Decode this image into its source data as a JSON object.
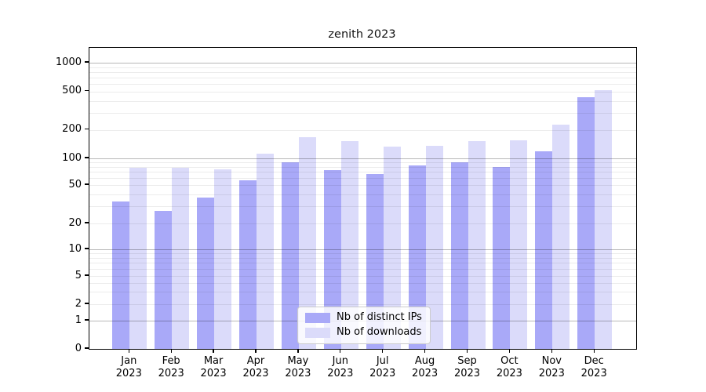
{
  "title": "zenith 2023",
  "colors": {
    "bar_distinct_ips": "#a9a9f8",
    "bar_downloads": "#dbdbfa",
    "grid_major": "#bcbcbc",
    "grid_minor": "#ececec",
    "axis": "#000000"
  },
  "legend": {
    "position": "lower center",
    "items": [
      {
        "label": "Nb of distinct IPs",
        "color": "#a9a9f8"
      },
      {
        "label": "Nb of downloads",
        "color": "#dbdbfa"
      }
    ]
  },
  "chart_data": {
    "type": "bar",
    "title": "zenith 2023",
    "xlabel": "",
    "ylabel": "",
    "scale": "symlog",
    "grid": true,
    "year": "2023",
    "categories": [
      "Jan",
      "Feb",
      "Mar",
      "Apr",
      "May",
      "Jun",
      "Jul",
      "Aug",
      "Sep",
      "Oct",
      "Nov",
      "Dec"
    ],
    "y_ticks": [
      0,
      1,
      2,
      5,
      10,
      20,
      50,
      100,
      200,
      500,
      1000
    ],
    "ylim": [
      0,
      1450
    ],
    "series": [
      {
        "name": "Nb of distinct IPs",
        "color": "#a9a9f8",
        "values": [
          34,
          27,
          37,
          57,
          90,
          73,
          66,
          83,
          90,
          80,
          119,
          433
        ]
      },
      {
        "name": "Nb of downloads",
        "color": "#dbdbfa",
        "values": [
          78,
          78,
          75,
          113,
          166,
          152,
          133,
          136,
          152,
          154,
          226,
          513
        ]
      }
    ],
    "legend_position": "lower center"
  }
}
